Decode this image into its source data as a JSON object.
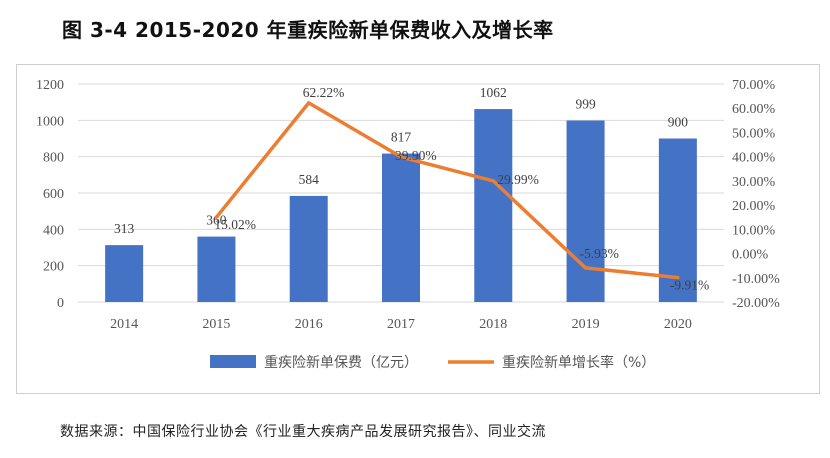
{
  "title": "图 3-4  2015-2020 年重疾险新单保费收入及增长率",
  "source": "数据来源：中国保险行业协会《行业重大疾病产品发展研究报告》、同业交流",
  "colors": {
    "bar": "#4472C4",
    "line": "#ED7D31",
    "grid": "#d9d9d9",
    "axis_text": "#555555"
  },
  "chart_data": {
    "type": "bar",
    "categories": [
      "2014",
      "2015",
      "2016",
      "2017",
      "2018",
      "2019",
      "2020"
    ],
    "series": [
      {
        "name": "重疾险新单保费（亿元）",
        "type": "bar",
        "axis": "left",
        "values": [
          313,
          360,
          584,
          817,
          1062,
          999,
          900
        ],
        "labels": [
          "313",
          "360",
          "584",
          "817",
          "1062",
          "999",
          "900"
        ]
      },
      {
        "name": "重疾险新单增长率（%）",
        "type": "line",
        "axis": "right",
        "values": [
          null,
          15.02,
          62.22,
          39.9,
          29.99,
          -5.93,
          -9.91
        ],
        "labels": [
          "",
          "15.02%",
          "62.22%",
          "39.90%",
          "29.99%",
          "-5.93%",
          "-9.91%"
        ]
      }
    ],
    "y_left": {
      "min": 0,
      "max": 1200,
      "ticks": [
        "0",
        "200",
        "400",
        "600",
        "800",
        "1000",
        "1200"
      ]
    },
    "y_right": {
      "min": -20,
      "max": 70,
      "ticks": [
        "-20.00%",
        "-10.00%",
        "0.00%",
        "10.00%",
        "20.00%",
        "30.00%",
        "40.00%",
        "50.00%",
        "60.00%",
        "70.00%"
      ]
    },
    "grid": true,
    "legend_position": "bottom"
  }
}
